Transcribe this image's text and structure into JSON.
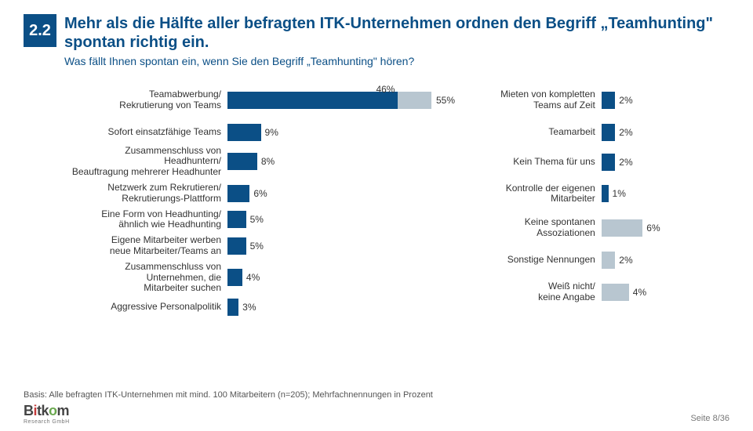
{
  "section_number": "2.2",
  "title": "Mehr als die Hälfte aller befragten ITK-Unternehmen ordnen den Begriff „Teamhunting\" spontan richtig ein.",
  "subtitle": "Was fällt Ihnen spontan ein, wenn Sie den Begriff „Teamhunting\" hören?",
  "left_chart": {
    "label_width": 200,
    "track_width": 260,
    "label_fontsize": 12,
    "value_fontsize": 12,
    "stacked": {
      "label": "Teamabwerbung/\nRekrutierung von Teams",
      "segments": [
        {
          "value": 46,
          "color": "#0b4f86",
          "text_color": "#ffffff",
          "label_inside": false
        },
        {
          "value": 9,
          "color": "#b8c6d0",
          "text_color": "#333333",
          "label_inside": false
        }
      ],
      "total_label": "55%",
      "seg1_label": "46%"
    },
    "rows": [
      {
        "label": "Sofort einsatzfähige Teams",
        "value": 9,
        "color": "#0b4f86"
      },
      {
        "label": "Zusammenschluss von Headhuntern/\nBeauftragung mehrerer Headhunter",
        "value": 8,
        "color": "#0b4f86"
      },
      {
        "label": "Netzwerk zum Rekrutieren/\nRekrutierungs-Plattform",
        "value": 6,
        "color": "#0b4f86"
      },
      {
        "label": "Eine Form von Headhunting/\nähnlich wie Headhunting",
        "value": 5,
        "color": "#0b4f86"
      },
      {
        "label": "Eigene Mitarbeiter werben\nneue Mitarbeiter/Teams an",
        "value": 5,
        "color": "#0b4f86"
      },
      {
        "label": "Zusammenschluss von Unternehmen, die\nMitarbeiter suchen",
        "value": 4,
        "color": "#0b4f86"
      },
      {
        "label": "Aggressive Personalpolitik",
        "value": 3,
        "color": "#0b4f86"
      }
    ],
    "scale_max": 55
  },
  "right_chart": {
    "label_width": 172,
    "track_width": 70,
    "label_fontsize": 12,
    "value_fontsize": 12,
    "rows": [
      {
        "label": "Mieten von kompletten\nTeams auf Zeit",
        "value": 2,
        "color": "#0b4f86"
      },
      {
        "label": "Teamarbeit",
        "value": 2,
        "color": "#0b4f86"
      },
      {
        "label": "Kein Thema für uns",
        "value": 2,
        "color": "#0b4f86"
      },
      {
        "label": "Kontrolle der eigenen Mitarbeiter",
        "value": 1,
        "color": "#0b4f86"
      },
      {
        "label": "Keine spontanen Assoziationen",
        "value": 6,
        "color": "#b8c6d0"
      },
      {
        "label": "Sonstige Nennungen",
        "value": 2,
        "color": "#b8c6d0"
      },
      {
        "label": "Weiß nicht/\nkeine Angabe",
        "value": 4,
        "color": "#b8c6d0"
      }
    ],
    "scale_max": 8
  },
  "footer": "Basis: Alle befragten ITK-Unternehmen mit mind. 100 Mitarbeitern (n=205); Mehrfachnennungen in Prozent",
  "logo_main": "Bitkom",
  "logo_sub": "Research GmbH",
  "page_number": "Seite 8/36"
}
